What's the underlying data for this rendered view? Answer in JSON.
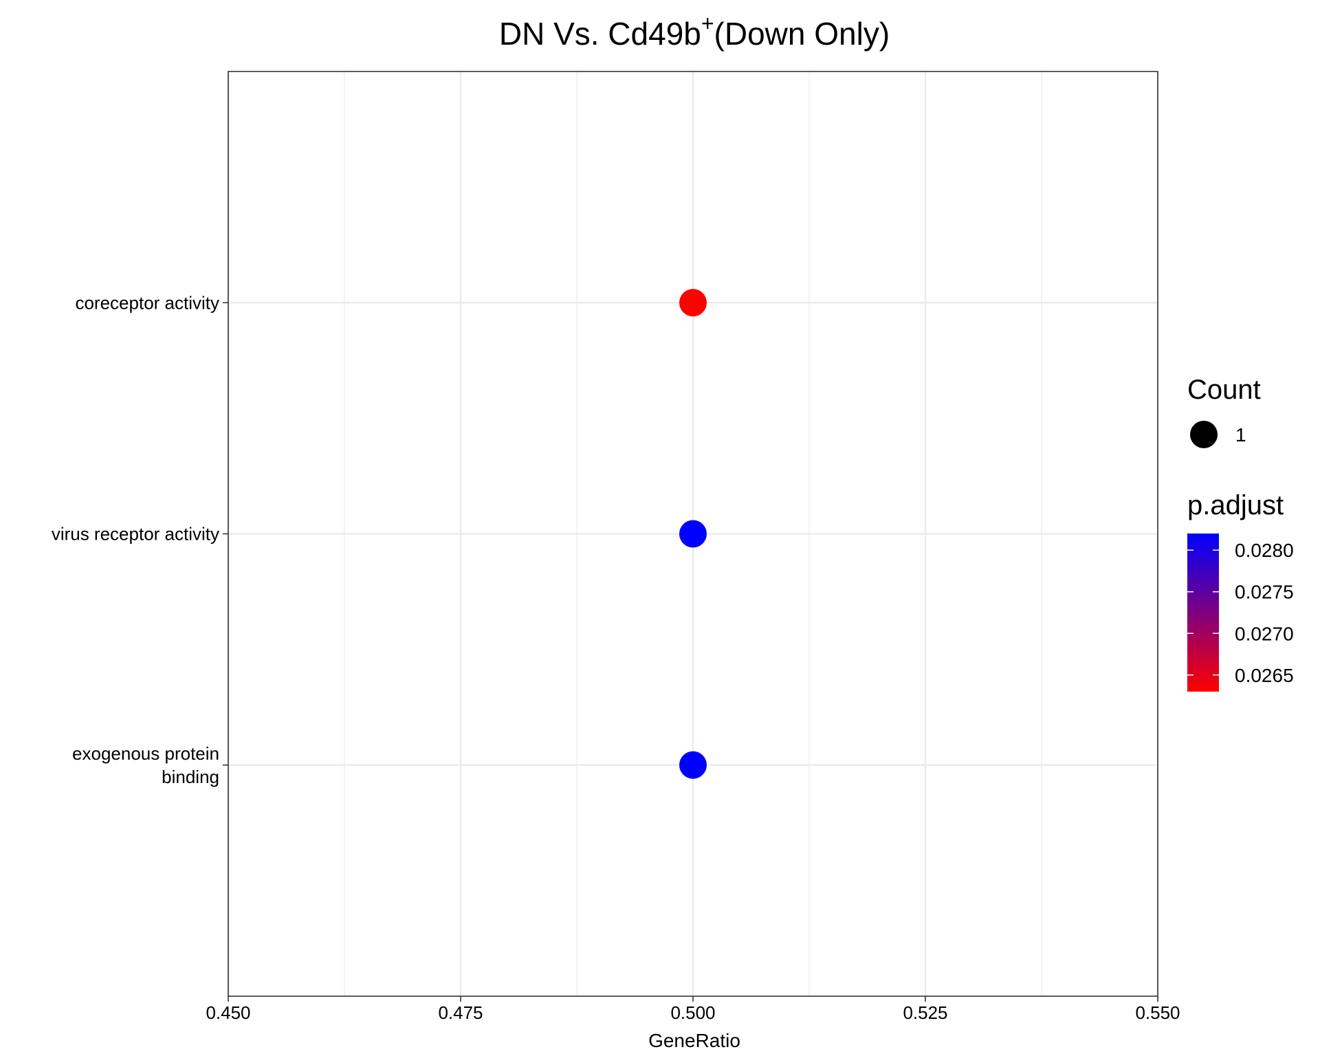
{
  "chart_data": {
    "type": "scatter",
    "title": "DN Vs. Cd49b",
    "title_superscript": "+",
    "title_suffix": "(Down Only)",
    "xlabel": "GeneRatio",
    "ylabel": "",
    "xlim": [
      0.45,
      0.55
    ],
    "x_ticks": [
      "0.450",
      "0.475",
      "0.500",
      "0.525",
      "0.550"
    ],
    "grid": true,
    "categories": [
      "exogenous protein binding",
      "virus receptor activity",
      "coreceptor activity"
    ],
    "category_labels": [
      [
        "exogenous protein",
        "binding"
      ],
      [
        "virus receptor activity"
      ],
      [
        "coreceptor activity"
      ]
    ],
    "points": [
      {
        "category": "coreceptor activity",
        "x": 0.5,
        "count": 1,
        "p_adjust": 0.0263,
        "color": "#ff0000"
      },
      {
        "category": "virus receptor activity",
        "x": 0.5,
        "count": 1,
        "p_adjust": 0.0282,
        "color": "#0000ff"
      },
      {
        "category": "exogenous protein binding",
        "x": 0.5,
        "count": 1,
        "p_adjust": 0.0282,
        "color": "#0000ff"
      }
    ],
    "legend": {
      "placement": "right",
      "size_title": "Count",
      "size_values": [
        "1"
      ],
      "color_title": "p.adjust",
      "color_ticks": [
        "0.0280",
        "0.0275",
        "0.0270",
        "0.0265"
      ],
      "color_tick_values": [
        0.028,
        0.0275,
        0.027,
        0.0265
      ],
      "color_range": [
        0.0263,
        0.0282
      ],
      "color_low": "#ff0000",
      "color_high": "#0000ff"
    }
  }
}
